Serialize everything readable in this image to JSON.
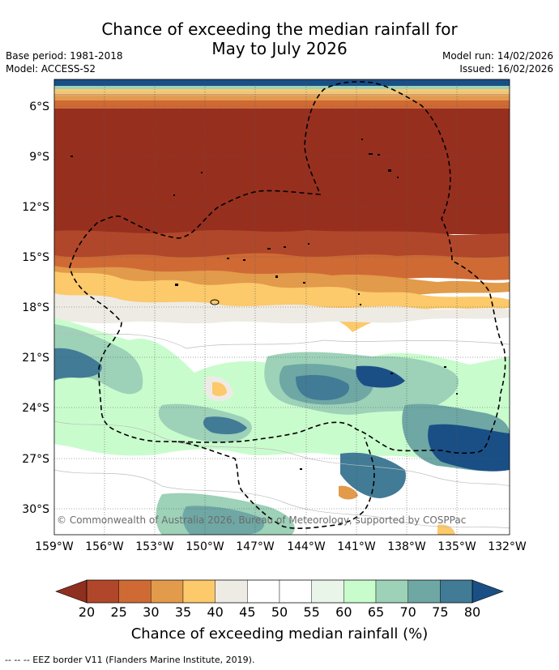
{
  "title": {
    "line1": "Chance of exceeding the median rainfall for",
    "line2": "May to July 2026"
  },
  "meta": {
    "base_period": "Base period: 1981-2018",
    "model": "Model: ACCESS-S2",
    "model_run": "Model run: 14/02/2026",
    "issued": "Issued: 16/02/2026"
  },
  "map": {
    "lat_ticks": [
      "6°S",
      "9°S",
      "12°S",
      "15°S",
      "18°S",
      "21°S",
      "24°S",
      "27°S",
      "30°S"
    ],
    "lon_ticks": [
      "159°W",
      "156°W",
      "153°W",
      "150°W",
      "147°W",
      "144°W",
      "141°W",
      "138°W",
      "135°W",
      "132°W"
    ],
    "copyright": "© Commonwealth of Australia 2026, Bureau of Meteorology, supported by COSPPac"
  },
  "colorbar": {
    "labels": [
      "20",
      "25",
      "30",
      "35",
      "40",
      "45",
      "50",
      "55",
      "60",
      "65",
      "70",
      "75",
      "80"
    ],
    "colors": [
      "#8f2f1f",
      "#b1472a",
      "#cf6a35",
      "#e29a4b",
      "#fcc96b",
      "#eeebe5",
      "#ffffff",
      "#ffffff",
      "#eaf5ea",
      "#c9fccd",
      "#9dd1b8",
      "#6ea7a4",
      "#417b96",
      "#1a4f86"
    ],
    "title": "Chance of exceeding median rainfall (%)"
  },
  "footnote": "--  --  -- EEZ border V11 (Flanders Marine Institute, 2019)."
}
